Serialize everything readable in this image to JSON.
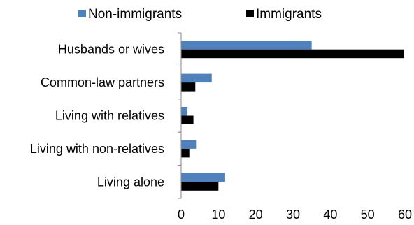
{
  "chart_data": {
    "type": "bar",
    "orientation": "horizontal",
    "title": "",
    "xlabel": "",
    "ylabel": "",
    "categories": [
      "Husbands or wives",
      "Common-law partners",
      "Living with relatives",
      "Living with non-relatives",
      "Living alone"
    ],
    "series": [
      {
        "name": "Non-immigrants",
        "color": "#4f81bd",
        "values": [
          35,
          8.2,
          1.7,
          4.0,
          11.8
        ]
      },
      {
        "name": "Immigrants",
        "color": "#000000",
        "values": [
          59.8,
          3.8,
          3.3,
          2.2,
          10.0
        ]
      }
    ],
    "xlim": [
      0,
      60
    ],
    "xticks": [
      "0",
      "10",
      "20",
      "30",
      "40",
      "50",
      "60"
    ],
    "grid": false,
    "legend_position": "top"
  }
}
